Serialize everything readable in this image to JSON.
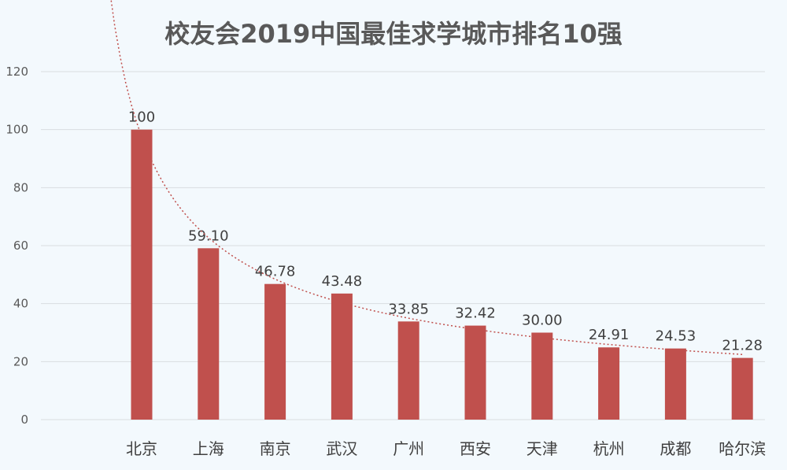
{
  "chart_data": {
    "type": "bar",
    "title": "校友会2019中国最佳求学城市排名10强",
    "categories": [
      "北京",
      "上海",
      "南京",
      "武汉",
      "广州",
      "西安",
      "天津",
      "杭州",
      "成都",
      "哈尔滨"
    ],
    "values": [
      100,
      59.1,
      46.78,
      43.48,
      33.85,
      32.42,
      30.0,
      24.91,
      24.53,
      21.28
    ],
    "data_labels": [
      "100",
      "59.10",
      "46.78",
      "43.48",
      "33.85",
      "32.42",
      "30.00",
      "24.91",
      "24.53",
      "21.28"
    ],
    "yticks": [
      "0",
      "20",
      "40",
      "60",
      "80",
      "100",
      "120"
    ],
    "ylim": [
      0,
      120
    ],
    "grid": true,
    "trendline": "dotted",
    "colors": {
      "bar": "#c0504d",
      "trend": "#c0504d"
    }
  }
}
